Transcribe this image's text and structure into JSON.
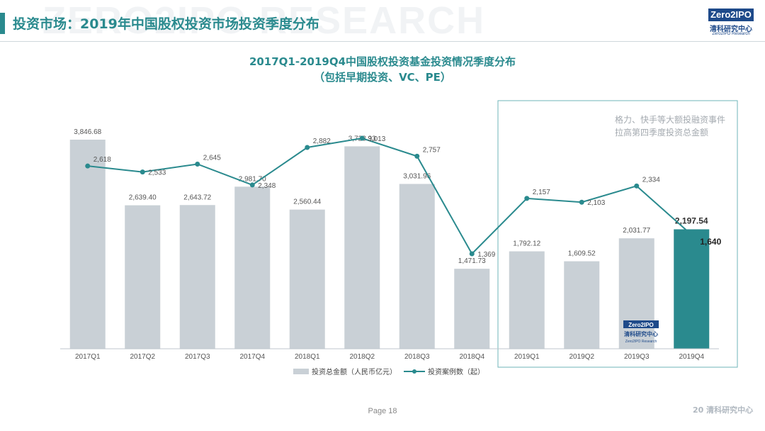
{
  "watermark": "ZERO2IPO RESEARCH",
  "header": {
    "title": "投资市场：2019年中国股权投资市场投资季度分布"
  },
  "logo": {
    "brand": "Zero2IPO",
    "cn": "清科研究中心",
    "en": "Zero2IPO Research"
  },
  "chart_data": {
    "type": "bar",
    "title": "2017Q1-2019Q4中国股权投资基金投资情况季度分布",
    "subtitle": "（包括早期投资、VC、PE）",
    "categories": [
      "2017Q1",
      "2017Q2",
      "2017Q3",
      "2017Q4",
      "2018Q1",
      "2018Q2",
      "2018Q3",
      "2018Q4",
      "2019Q1",
      "2019Q2",
      "2019Q3",
      "2019Q4"
    ],
    "series": [
      {
        "name": "投资总金额（人民币亿元）",
        "type": "bar",
        "values": [
          3846.68,
          2639.4,
          2643.72,
          2981.7,
          2560.44,
          3723.93,
          3031.96,
          1471.73,
          1792.12,
          1609.52,
          2031.77,
          2197.54
        ],
        "labels": [
          "3,846.68",
          "2,639.40",
          "2,643.72",
          "2,981.70",
          "2,560.44",
          "3,723.93",
          "3,031.96",
          "1,471.73",
          "1,792.12",
          "1,609.52",
          "2,031.77",
          "2,197.54"
        ],
        "color": "#c9d0d6",
        "highlight_color": "#2a8a8e"
      },
      {
        "name": "投资案例数（起）",
        "type": "line",
        "values": [
          2618,
          2533,
          2645,
          2348,
          2882,
          3013,
          2757,
          1369,
          2157,
          2103,
          2334,
          1640
        ],
        "labels": [
          "2,618",
          "2,533",
          "2,645",
          "2,348",
          "2,882",
          "3,013",
          "2,757",
          "1,369",
          "2,157",
          "2,103",
          "2,334",
          "1,640"
        ],
        "color": "#2a8a8e"
      }
    ],
    "highlight_index": 11,
    "highlight_range": [
      "2019Q1",
      "2019Q4"
    ],
    "legend_position": "bottom",
    "grid": false
  },
  "callout": "格力、快手等大额投融资事件拉高第四季度投资总金额",
  "watermark_logo": {
    "brand": "Zero2IPO",
    "cn": "清科研究中心",
    "en": "Zero2IPO Research"
  },
  "footer": {
    "page": "Page 18",
    "logo": "20 清科研究中心"
  }
}
